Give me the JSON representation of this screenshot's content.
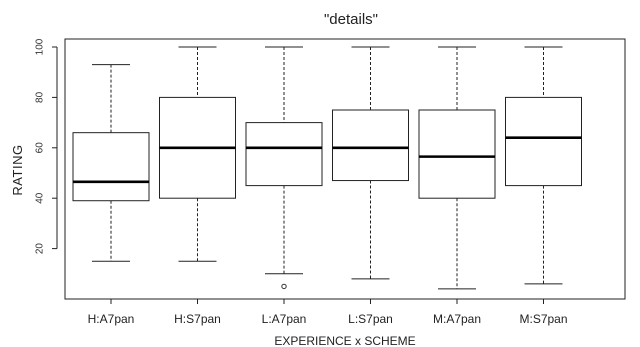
{
  "chart_data": {
    "type": "boxplot",
    "title": "\"details\"",
    "xlabel": "EXPERIENCE x SCHEME",
    "ylabel": "RATING",
    "ylim": [
      0,
      100
    ],
    "yticks": [
      20,
      40,
      60,
      80,
      100
    ],
    "grid": false,
    "categories": [
      "H:A7pan",
      "H:S7pan",
      "L:A7pan",
      "L:S7pan",
      "M:A7pan",
      "M:S7pan"
    ],
    "boxes": [
      {
        "whisker_low": 15,
        "q1": 39,
        "median": 46.5,
        "q3": 66,
        "whisker_high": 93,
        "outliers": []
      },
      {
        "whisker_low": 15,
        "q1": 40,
        "median": 60,
        "q3": 80,
        "whisker_high": 100,
        "outliers": []
      },
      {
        "whisker_low": 10,
        "q1": 45,
        "median": 60,
        "q3": 70,
        "whisker_high": 100,
        "outliers": [
          5
        ]
      },
      {
        "whisker_low": 8,
        "q1": 47,
        "median": 60,
        "q3": 75,
        "whisker_high": 100,
        "outliers": []
      },
      {
        "whisker_low": 4,
        "q1": 40,
        "median": 56.5,
        "q3": 75,
        "whisker_high": 100,
        "outliers": []
      },
      {
        "whisker_low": 6,
        "q1": 45,
        "median": 64,
        "q3": 80,
        "whisker_high": 100,
        "outliers": []
      }
    ]
  }
}
